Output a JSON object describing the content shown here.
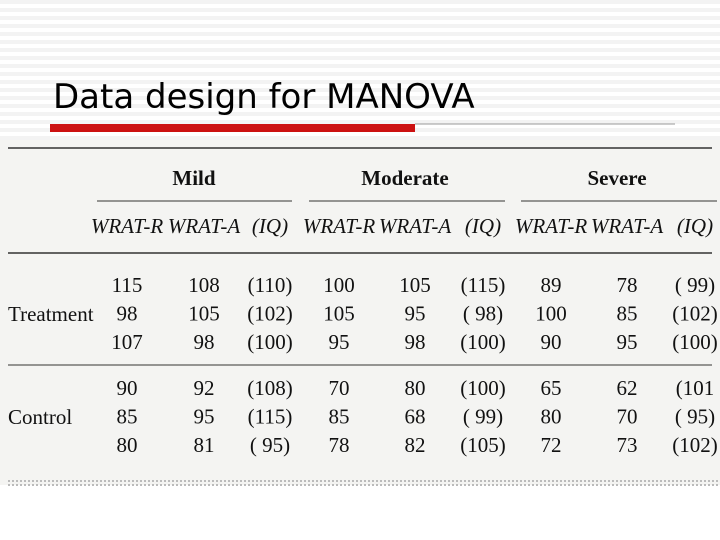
{
  "header": {
    "title": "Data design for MANOVA"
  },
  "table": {
    "groups": [
      {
        "name": "Mild",
        "columns": [
          "WRAT-R",
          "WRAT-A",
          "(IQ)"
        ]
      },
      {
        "name": "Moderate",
        "columns": [
          "WRAT-R",
          "WRAT-A",
          "(IQ)"
        ]
      },
      {
        "name": "Severe",
        "columns": [
          "WRAT-R",
          "WRAT-A",
          "(IQ)"
        ]
      }
    ],
    "sections": [
      {
        "label": "Treatment",
        "rows": [
          [
            "115",
            "108",
            "(110)",
            "100",
            "105",
            "(115)",
            "89",
            "78",
            "( 99)"
          ],
          [
            "98",
            "105",
            "(102)",
            "105",
            "95",
            "( 98)",
            "100",
            "85",
            "(102)"
          ],
          [
            "107",
            "98",
            "(100)",
            "95",
            "98",
            "(100)",
            "90",
            "95",
            "(100)"
          ]
        ]
      },
      {
        "label": "Control",
        "rows": [
          [
            "90",
            "92",
            "(108)",
            "70",
            "80",
            "(100)",
            "65",
            "62",
            "(101"
          ],
          [
            "85",
            "95",
            "(115)",
            "85",
            "68",
            "( 99)",
            "80",
            "70",
            "( 95)"
          ],
          [
            "80",
            "81",
            "( 95)",
            "78",
            "82",
            "(105)",
            "72",
            "73",
            "(102)"
          ]
        ]
      }
    ]
  }
}
